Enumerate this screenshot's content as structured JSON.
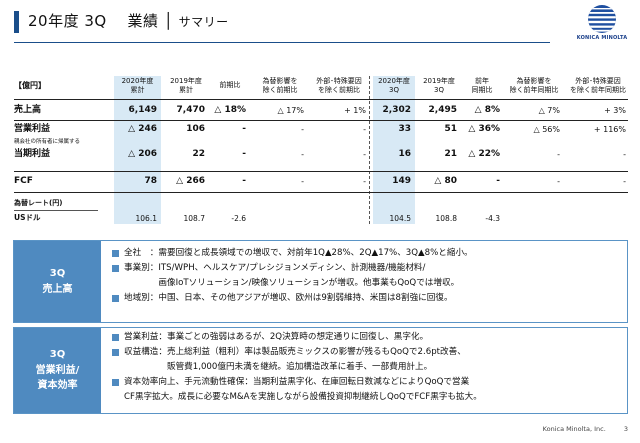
{
  "header": {
    "title": "20年度 3Q　 業績",
    "subtitle": "サマリー",
    "logo_text": "KONICA MINOLTA"
  },
  "table": {
    "unit": "【億円】",
    "columns": [
      "2020年度\n累計",
      "2019年度\n累計",
      "前期比",
      "為替影響を\n除く前期比",
      "外部･特殊要因\nを除く前期比",
      "2020年度\n3Q",
      "2019年度\n3Q",
      "前年\n同期比",
      "為替影響を\n除く前年同期比",
      "外部･特殊要因\nを除く前年同期比"
    ],
    "rows": {
      "sales": {
        "label": "売上高",
        "values": [
          "6,149",
          "7,470",
          "△ 18%",
          "△ 17%",
          "+ 1%",
          "2,302",
          "2,495",
          "△ 8%",
          "△ 7%",
          "+ 3%"
        ]
      },
      "op": {
        "label": "営業利益",
        "values": [
          "△ 246",
          "106",
          "-",
          "-",
          "-",
          "33",
          "51",
          "△ 36%",
          "△ 56%",
          "+ 116%"
        ]
      },
      "net": {
        "label_small": "親会社の所有者に帰属する",
        "label": "当期利益",
        "values": [
          "△ 206",
          "22",
          "-",
          "-",
          "-",
          "16",
          "21",
          "△ 22%",
          "-",
          "-"
        ]
      },
      "fcf": {
        "label": "FCF",
        "values": [
          "78",
          "△ 266",
          "-",
          "-",
          "-",
          "149",
          "△ 80",
          "-",
          "-",
          "-"
        ]
      },
      "fx_header": "為替レート(円)",
      "usd": {
        "label": "USドル",
        "values": [
          "106.1",
          "108.7",
          "-2.6",
          "",
          "",
          "104.5",
          "108.8",
          "-4.3",
          "",
          ""
        ]
      }
    }
  },
  "summary": {
    "sales_label": [
      "3Q",
      "売上高"
    ],
    "sales_items": [
      "全社　：需要回復と成長領域での増収で、対前年1Q▲28%、2Q▲17%、3Q▲8%と縮小。",
      "事業別：ITS/WPH、ヘルスケア/プレシジョンメディシン、計測機器/機能材料/",
      "　　　　画像IoTソリューション/映像ソリューションが増収。他事業もQoQでは増収。",
      "地域別：中国、日本、その他アジアが増収、欧州は9割弱維持、米国は8割強に回復。"
    ],
    "profit_label": [
      "3Q",
      "営業利益/",
      "資本効率"
    ],
    "profit_items": [
      "営業利益：事業ごとの強弱はあるが、2Q決算時の想定通りに回復し、黒字化。",
      "収益構造：売上総利益（粗利）率は製品販売ミックスの影響が残るもQoQで2.6pt改善、",
      "　　　　　販管費1,000億円未満を継続。追加構造改革に着手、一部費用計上。",
      "資本効率向上、手元流動性確保：当期利益黒字化、在庫回転日数減などによりQoQで営業",
      "CF黒字拡大。成長に必要なM&Aを実施しながら設備投資抑制継続しQoQでFCF黒字も拡大。"
    ]
  },
  "footer": {
    "company": "Konica Minolta, Inc.",
    "page": "3"
  },
  "colors": {
    "accent": "#4f8ac0",
    "highlight": "#d8e9f5",
    "title_bar": "#1a4e8a"
  }
}
